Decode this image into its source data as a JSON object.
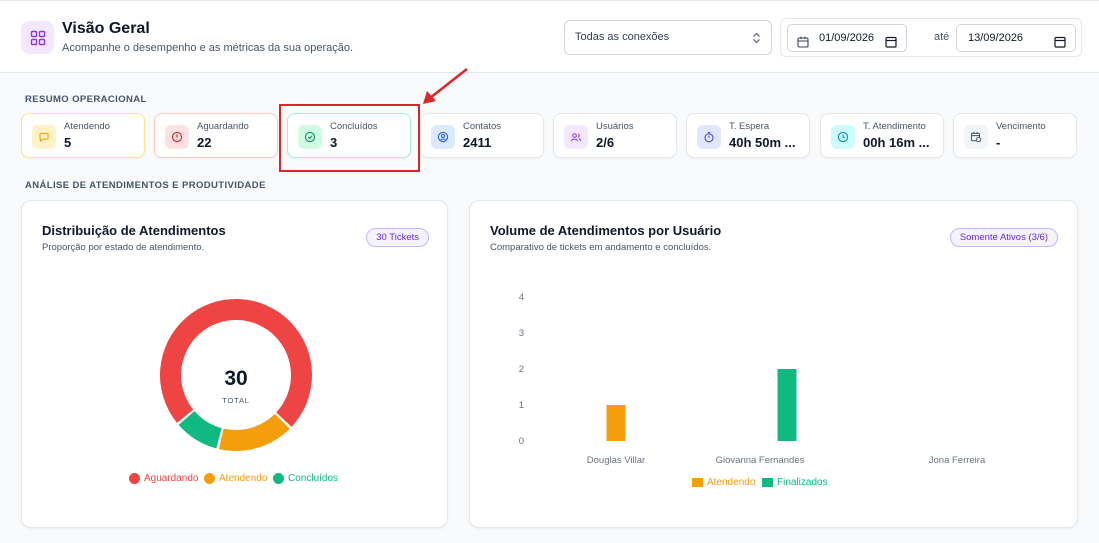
{
  "header": {
    "title": "Visão Geral",
    "subtitle": "Acompanhe o desempenho e as métricas da sua operação.",
    "connection_select": "Todas as conexões",
    "date_from": "01/09/2026",
    "date_sep": "até",
    "date_to": "13/09/2026"
  },
  "sections": {
    "summary": "RESUMO OPERACIONAL",
    "analysis": "ANÁLISE DE ATENDIMENTOS E PRODUTIVIDADE"
  },
  "stats": [
    {
      "label": "Atendendo",
      "value": "5",
      "icon": "chat-icon",
      "color": "#f59e0b",
      "bg": "#fef3c7"
    },
    {
      "label": "Aguardando",
      "value": "22",
      "icon": "alert-circle-icon",
      "color": "#dc2626",
      "bg": "#fee2e2"
    },
    {
      "label": "Concluídos",
      "value": "3",
      "icon": "check-circle-icon",
      "color": "#059669",
      "bg": "#d1fae5"
    },
    {
      "label": "Contatos",
      "value": "2411",
      "icon": "user-circle-icon",
      "color": "#2563eb",
      "bg": "#dbeafe"
    },
    {
      "label": "Usuários",
      "value": "2/6",
      "icon": "users-icon",
      "color": "#9333ea",
      "bg": "#f3e8ff"
    },
    {
      "label": "T. Espera",
      "value": "40h 50m ...",
      "icon": "stopwatch-icon",
      "color": "#4f46e5",
      "bg": "#e0e7ff"
    },
    {
      "label": "T. Atendimento",
      "value": "00h 16m ...",
      "icon": "clock-icon",
      "color": "#0891b2",
      "bg": "#cffafe"
    },
    {
      "label": "Vencimento",
      "value": "-",
      "icon": "calendar-clock-icon",
      "color": "#475569",
      "bg": "#f1f5f9"
    }
  ],
  "donut_panel": {
    "title": "Distribuição de Atendimentos",
    "subtitle": "Proporção por estado de atendimento.",
    "badge": "30 Tickets",
    "total_value": "30",
    "total_label": "TOTAL"
  },
  "bar_panel": {
    "title": "Volume de Atendimentos por Usuário",
    "subtitle": "Comparativo de tickets em andamento e concluídos.",
    "badge": "Somente Ativos (3/6)"
  },
  "chart_data": [
    {
      "type": "pie",
      "title": "Distribuição de Atendimentos",
      "categories": [
        "Aguardando",
        "Atendendo",
        "Concluídos"
      ],
      "values": [
        22,
        5,
        3
      ],
      "colors": [
        "#ef4444",
        "#f59e0b",
        "#10b981"
      ],
      "legend": "bottom"
    },
    {
      "type": "bar",
      "title": "Volume de Atendimentos por Usuário",
      "categories": [
        "Douglas Villar",
        "Giovanna Fernandes",
        "Jona Ferreira"
      ],
      "series": [
        {
          "name": "Atendendo",
          "values": [
            1,
            0,
            0
          ],
          "color": "#f59e0b"
        },
        {
          "name": "Finalizados",
          "values": [
            0,
            2,
            0
          ],
          "color": "#10b981"
        }
      ],
      "y_ticks": [
        "0",
        "1",
        "2",
        "3",
        "4"
      ],
      "ylim": [
        0,
        4
      ],
      "legend": "bottom"
    }
  ]
}
